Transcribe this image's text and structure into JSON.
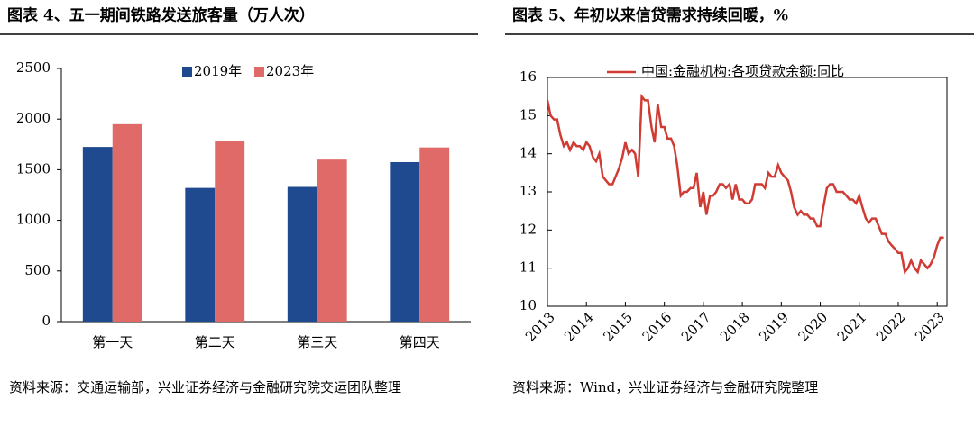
{
  "chart_data": [
    {
      "type": "bar",
      "title": "图表 4、五一期间铁路发送旅客量（万人次）",
      "categories": [
        "第一天",
        "第二天",
        "第三天",
        "第四天"
      ],
      "series": [
        {
          "name": "2019年",
          "color": "#1f4a8f",
          "values": [
            1725,
            1320,
            1330,
            1575
          ]
        },
        {
          "name": "2023年",
          "color": "#e06a67",
          "values": [
            1950,
            1785,
            1600,
            1720
          ]
        }
      ],
      "ylim": [
        0,
        2500
      ],
      "yticks": [
        0,
        500,
        1000,
        1500,
        2000,
        2500
      ],
      "legend": "top",
      "source": "资料来源：交通运输部，兴业证券经济与金融研究院交运团队整理"
    },
    {
      "type": "line",
      "title": "图表 5、年初以来信贷需求持续回暖，%",
      "x": [
        2013.0,
        2013.08,
        2013.17,
        2013.25,
        2013.33,
        2013.42,
        2013.5,
        2013.58,
        2013.67,
        2013.75,
        2013.83,
        2013.92,
        2014.0,
        2014.08,
        2014.17,
        2014.25,
        2014.33,
        2014.42,
        2014.5,
        2014.58,
        2014.67,
        2014.75,
        2014.83,
        2014.92,
        2015.0,
        2015.08,
        2015.17,
        2015.25,
        2015.33,
        2015.42,
        2015.5,
        2015.58,
        2015.67,
        2015.75,
        2015.83,
        2015.92,
        2016.0,
        2016.08,
        2016.17,
        2016.25,
        2016.33,
        2016.42,
        2016.5,
        2016.58,
        2016.67,
        2016.75,
        2016.83,
        2016.92,
        2017.0,
        2017.08,
        2017.17,
        2017.25,
        2017.33,
        2017.42,
        2017.5,
        2017.58,
        2017.67,
        2017.75,
        2017.83,
        2017.92,
        2018.0,
        2018.08,
        2018.17,
        2018.25,
        2018.33,
        2018.42,
        2018.5,
        2018.58,
        2018.67,
        2018.75,
        2018.83,
        2018.92,
        2019.0,
        2019.08,
        2019.17,
        2019.25,
        2019.33,
        2019.42,
        2019.5,
        2019.58,
        2019.67,
        2019.75,
        2019.83,
        2019.92,
        2020.0,
        2020.08,
        2020.17,
        2020.25,
        2020.33,
        2020.42,
        2020.5,
        2020.58,
        2020.67,
        2020.75,
        2020.83,
        2020.92,
        2021.0,
        2021.08,
        2021.17,
        2021.25,
        2021.33,
        2021.42,
        2021.5,
        2021.58,
        2021.67,
        2021.75,
        2021.83,
        2021.92,
        2022.0,
        2022.08,
        2022.17,
        2022.25,
        2022.33,
        2022.42,
        2022.5,
        2022.58,
        2022.67,
        2022.75,
        2022.83,
        2022.92,
        2023.0,
        2023.08,
        2023.17
      ],
      "series": [
        {
          "name": "中国:金融机构:各项贷款余额:同比",
          "color": "#d03b34",
          "values": [
            15.4,
            15.0,
            14.9,
            14.9,
            14.5,
            14.2,
            14.3,
            14.1,
            14.3,
            14.2,
            14.2,
            14.1,
            14.3,
            14.2,
            13.9,
            13.8,
            14.0,
            13.4,
            13.3,
            13.2,
            13.2,
            13.4,
            13.6,
            13.9,
            14.3,
            14.0,
            14.1,
            14.0,
            13.4,
            15.5,
            15.4,
            15.4,
            14.7,
            14.3,
            15.3,
            14.7,
            14.7,
            14.4,
            14.4,
            14.2,
            13.7,
            12.9,
            13.0,
            13.0,
            13.1,
            13.1,
            13.5,
            12.6,
            13.0,
            12.4,
            12.9,
            12.9,
            13.0,
            13.2,
            13.2,
            13.1,
            13.2,
            12.8,
            13.2,
            12.8,
            12.8,
            12.7,
            12.7,
            12.8,
            13.2,
            13.2,
            13.2,
            13.1,
            13.5,
            13.4,
            13.4,
            13.7,
            13.5,
            13.4,
            13.3,
            13.0,
            12.6,
            12.4,
            12.5,
            12.4,
            12.4,
            12.3,
            12.3,
            12.1,
            12.1,
            12.6,
            13.1,
            13.2,
            13.2,
            13.0,
            13.0,
            13.0,
            12.9,
            12.8,
            12.8,
            12.7,
            12.9,
            12.6,
            12.3,
            12.2,
            12.3,
            12.3,
            12.1,
            11.9,
            11.9,
            11.7,
            11.6,
            11.5,
            11.4,
            11.4,
            10.9,
            11.0,
            11.2,
            11.0,
            10.9,
            11.2,
            11.1,
            11.0,
            11.1,
            11.3,
            11.6,
            11.8,
            11.8
          ]
        }
      ],
      "xlim": [
        2013,
        2023.25
      ],
      "xticks": [
        2013,
        2014,
        2015,
        2016,
        2017,
        2018,
        2019,
        2020,
        2021,
        2022,
        2023
      ],
      "ylim": [
        10,
        16
      ],
      "yticks": [
        10,
        11,
        12,
        13,
        14,
        15,
        16
      ],
      "legend": "top",
      "source": "资料来源：Wind，兴业证券经济与金融研究院整理"
    }
  ]
}
